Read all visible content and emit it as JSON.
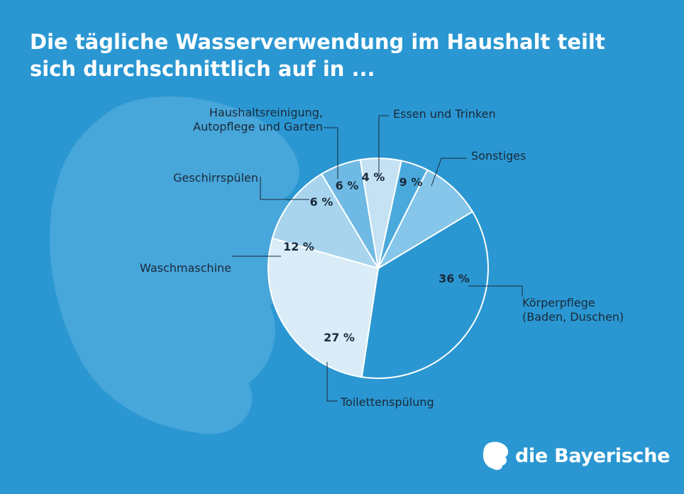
{
  "title": "Die tägliche Wasserverwendung im Haushalt teilt sich durchschnittlich auf in ...",
  "brand": {
    "name": "die Bayerische",
    "logo_icon": "lion-head-icon"
  },
  "colors": {
    "background": "#2a97d2",
    "watermark": "#5fb3e0",
    "slice_edge": "#ffffff",
    "label_text": "#1a2a3a",
    "leader": "#1a2a3a"
  },
  "chart_data": {
    "type": "pie",
    "title": "Die tägliche Wasserverwendung im Haushalt teilt sich durchschnittlich auf in ...",
    "unit": "%",
    "slices": [
      {
        "label": "Körperpflege (Baden, Duschen)",
        "label_lines": [
          "Körperpflege",
          "(Baden, Duschen)"
        ],
        "value": 36,
        "value_label": "36 %",
        "color": "#2a97d2"
      },
      {
        "label": "Toilettenspülung",
        "label_lines": [
          "Toilettenspülung"
        ],
        "value": 27,
        "value_label": "27 %",
        "color": "#d9ecf7"
      },
      {
        "label": "Waschmaschine",
        "label_lines": [
          "Waschmaschine"
        ],
        "value": 12,
        "value_label": "12 %",
        "color": "#a8d4ee"
      },
      {
        "label": "Geschirrspülen",
        "label_lines": [
          "Geschirrspülen"
        ],
        "value": 6,
        "value_label": "6 %",
        "color": "#6fbae4"
      },
      {
        "label": "Haushaltsreinigung, Autopflege und Garten",
        "label_lines": [
          "Haushaltsreinigung,",
          "Autopflege und Garten"
        ],
        "value": 6,
        "value_label": "6 %",
        "color": "#c4e2f4"
      },
      {
        "label": "Essen und Trinken",
        "label_lines": [
          "Essen und Trinken"
        ],
        "value": 4,
        "value_label": "4 %",
        "color": "#4aa9dc"
      },
      {
        "label": "Sonstiges",
        "label_lines": [
          "Sonstiges"
        ],
        "value": 9,
        "value_label": "9 %",
        "color": "#86c6ea"
      }
    ]
  }
}
